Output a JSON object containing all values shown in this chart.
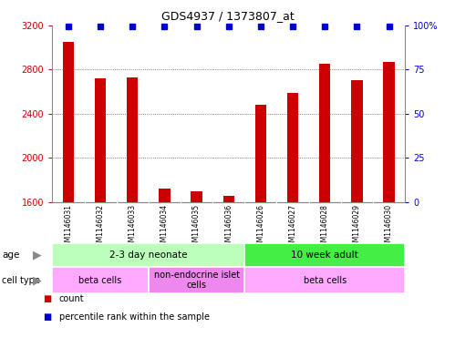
{
  "title": "GDS4937 / 1373807_at",
  "samples": [
    "GSM1146031",
    "GSM1146032",
    "GSM1146033",
    "GSM1146034",
    "GSM1146035",
    "GSM1146036",
    "GSM1146026",
    "GSM1146027",
    "GSM1146028",
    "GSM1146029",
    "GSM1146030"
  ],
  "counts": [
    3050,
    2720,
    2730,
    1720,
    1700,
    1660,
    2480,
    2590,
    2850,
    2700,
    2870
  ],
  "percentile_ranks": [
    99,
    99,
    99,
    99,
    99,
    99,
    99,
    99,
    99,
    99,
    99
  ],
  "ylim_left": [
    1600,
    3200
  ],
  "ylim_right": [
    0,
    100
  ],
  "yticks_left": [
    1600,
    2000,
    2400,
    2800,
    3200
  ],
  "yticks_right": [
    0,
    25,
    50,
    75,
    100
  ],
  "bar_color": "#cc0000",
  "marker_color": "#0000cc",
  "age_groups": [
    {
      "label": "2-3 day neonate",
      "start": 0,
      "end": 6,
      "color": "#bbffbb"
    },
    {
      "label": "10 week adult",
      "start": 6,
      "end": 11,
      "color": "#44ee44"
    }
  ],
  "cell_type_groups": [
    {
      "label": "beta cells",
      "start": 0,
      "end": 3,
      "color": "#ffaaff"
    },
    {
      "label": "non-endocrine islet\ncells",
      "start": 3,
      "end": 6,
      "color": "#ee88ee"
    },
    {
      "label": "beta cells",
      "start": 6,
      "end": 11,
      "color": "#ffaaff"
    }
  ],
  "legend_items": [
    {
      "label": "count",
      "color": "#cc0000"
    },
    {
      "label": "percentile rank within the sample",
      "color": "#0000cc"
    }
  ],
  "background_color": "#ffffff",
  "plot_bg": "#ffffff",
  "grid_color": "#555555",
  "sample_bg": "#cccccc",
  "bar_width": 0.35,
  "title_fontsize": 9,
  "tick_fontsize": 7,
  "label_fontsize": 7,
  "sample_fontsize": 5.5
}
